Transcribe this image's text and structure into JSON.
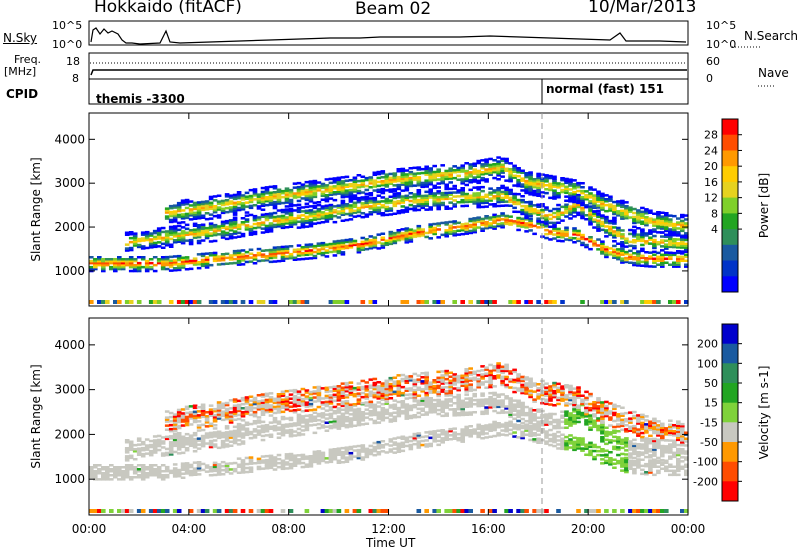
{
  "header": {
    "radar": "Hokkaido (fitACF)",
    "beam": "Beam 02",
    "date": "10/Mar/2013"
  },
  "top_panels": {
    "nsky_label": "N.Sky",
    "nsearch_label": "N.Search",
    "count_top": "10^5",
    "count_bottom": "10^0",
    "freq_label": "Freq.",
    "freq_unit": "[MHz]",
    "freq_ticks": [
      "18",
      "8"
    ],
    "nave_label": "Nave",
    "nave_ticks": [
      "60",
      "0"
    ],
    "cpid_label": "CPID",
    "cpid_segments": [
      "themis -3300",
      "normal (fast) 151"
    ]
  },
  "chart_data": [
    {
      "type": "heatmap",
      "title": "",
      "quantity": "Power",
      "xlabel": "",
      "ylabel": "Slant Range [km]",
      "x_ticks": [
        "00:00",
        "04:00",
        "08:00",
        "12:00",
        "16:00",
        "20:00",
        "00:00"
      ],
      "y_ticks": [
        "1000",
        "2000",
        "3000",
        "4000"
      ],
      "ylim": [
        200,
        4600
      ],
      "colorbar": {
        "label": "Power [dB]",
        "ticks": [
          "28",
          "24",
          "20",
          "16",
          "12",
          "8",
          "4"
        ],
        "colors": [
          "#ff0000",
          "#ff4d00",
          "#ff9900",
          "#ffcc00",
          "#e6d21f",
          "#7fcf2a",
          "#22a522",
          "#2f8f5a",
          "#1a5aa0",
          "#0033c8",
          "#0000ff"
        ]
      },
      "echo_bands": [
        {
          "name": "main",
          "t": [
            0,
            1.5,
            3,
            5,
            7,
            9,
            11,
            13,
            15,
            16.5,
            17.5,
            18.5,
            19.5,
            20.5,
            21.5,
            22.5,
            24
          ],
          "range": [
            1150,
            1150,
            1150,
            1250,
            1350,
            1450,
            1600,
            1850,
            2000,
            2150,
            2050,
            1850,
            1800,
            1500,
            1300,
            1250,
            1250
          ]
        },
        {
          "name": "upper",
          "t": [
            1,
            3,
            5,
            7,
            9,
            11,
            12,
            13,
            15,
            16.5,
            17.5,
            18.5,
            19.5,
            20.5,
            21.5,
            22.5,
            24
          ],
          "range": [
            1600,
            1750,
            1900,
            2100,
            2250,
            2450,
            2500,
            2600,
            2650,
            2700,
            2400,
            2200,
            2500,
            2050,
            1700,
            1650,
            1600
          ]
        },
        {
          "name": "top",
          "t": [
            3,
            5,
            7,
            9,
            11,
            12,
            13,
            15,
            16.5,
            17.5,
            18.5,
            19.5,
            20.5,
            21.5,
            22.5,
            24
          ],
          "range": [
            2300,
            2450,
            2650,
            2800,
            2950,
            3050,
            3100,
            3200,
            3350,
            3000,
            2900,
            2800,
            2500,
            2300,
            2100,
            2000
          ]
        }
      ]
    },
    {
      "type": "heatmap",
      "title": "",
      "quantity": "Velocity",
      "xlabel": "Time UT",
      "ylabel": "Slant Range [km]",
      "x_ticks": [
        "00:00",
        "04:00",
        "08:00",
        "12:00",
        "16:00",
        "20:00",
        "00:00"
      ],
      "y_ticks": [
        "1000",
        "2000",
        "3000",
        "4000"
      ],
      "ylim": [
        200,
        4600
      ],
      "colorbar": {
        "label": "Velocity [m s-1]",
        "ticks": [
          "200",
          "100",
          "50",
          "15",
          "-15",
          "-50",
          "-100",
          "-200"
        ],
        "colors": [
          "#0000cc",
          "#1a5aa0",
          "#2f8f5a",
          "#22a522",
          "#7fd23a",
          "#c8c8c0",
          "#ff9900",
          "#ff4d00",
          "#ff0000"
        ]
      },
      "ground_scatter_color": "#c8c8c0"
    }
  ]
}
